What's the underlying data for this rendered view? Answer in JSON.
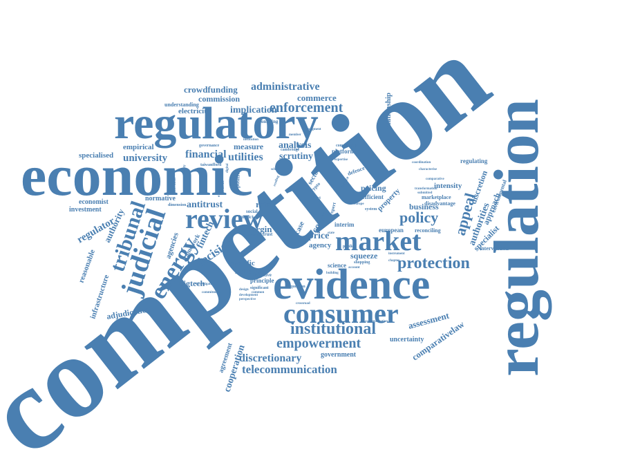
{
  "color": "#4a7fb1",
  "words": {
    "competition": "competition",
    "regulation": "regulation",
    "economic": "economic",
    "regulatory": "regulatory",
    "evidence": "evidence",
    "consumer": "consumer",
    "market": "market",
    "review": "review",
    "judicial": "judicial",
    "energy": "energy",
    "tribunal": "tribunal",
    "protection": "protection",
    "institutional": "institutional",
    "empowerment": "empowerment",
    "telecommunication": "telecommunication",
    "discretionary": "discretionary",
    "enforcement": "enforcement",
    "administrative": "administrative",
    "crowdfunding": "crowdfunding",
    "commission": "commission",
    "implication": "implication",
    "commerce": "commerce",
    "electricity": "electricity",
    "understanding": "understanding",
    "university": "university",
    "specialised": "specialised",
    "empirical": "empirical",
    "financial": "financial",
    "utilities": "utilities",
    "scrutiny": "scrutiny",
    "analysis": "analysis",
    "measure": "measure",
    "economist": "economist",
    "investment": "investment",
    "regulator": "regulator",
    "authority": "authority",
    "reasonable": "reasonable",
    "infrastructure": "infrastructure",
    "adjudication": "adjudication",
    "agencies": "agencies",
    "antitrust": "antitrust",
    "retail": "retail",
    "decision": "decision",
    "fintech": "fintech",
    "bigtech": "bigtech",
    "specific": "specific",
    "industry": "industry",
    "principle": "principle",
    "normative": "normative",
    "framework": "framework",
    "policy": "policy",
    "appeal": "appeal",
    "authorities": "authorities",
    "specialist": "specialist",
    "approach": "approach",
    "discretion": "discretion",
    "intensity": "intensity",
    "business": "business",
    "pricing": "pricing",
    "efficient": "efficient",
    "price": "price",
    "agency": "agency",
    "court": "court",
    "case": "case",
    "interim": "interim",
    "margin": "margin",
    "squeeze": "squeeze",
    "science": "science",
    "assessment": "assessment",
    "comparativelaw": "comparativelaw",
    "uncertainty": "uncertainty",
    "government": "government",
    "cooperation": "cooperation",
    "agreement": "agreement",
    "relationship": "relationship",
    "regulating": "regulating",
    "environmental": "environmental",
    "intervention": "intervention",
    "european": "european",
    "reconciling": "reconciling",
    "marketplace": "marketplace",
    "disadvantage": "disadvantage",
    "promoting": "promoting",
    "governance": "governance",
    "cambridge": "cambridge",
    "platform": "platform",
    "competitive": "competitive",
    "property": "property",
    "sector": "sector",
    "defence": "defence",
    "positive": "positive",
    "dimension": "dimension",
    "social": "social",
    "trust": "trust",
    "impact": "impact",
    "objective": "objective",
    "significant": "significant",
    "question": "question",
    "shopping": "shopping",
    "crossroad": "crossroad",
    "transformation": "transformation",
    "comparative": "comparative",
    "characterise": "characterise",
    "instrument": "instrument",
    "commitment": "commitment",
    "investigation": "investigation",
    "development": "development",
    "communication": "communication",
    "article": "article",
    "expert": "expert",
    "effect": "effect",
    "public": "public",
    "system": "system",
    "account": "account",
    "building": "building",
    "innovation": "innovation",
    "experience": "experience",
    "credibility": "credibility",
    "submitted": "submitted",
    "coordination": "coordination",
    "regulatory2": "regulatory",
    "technology": "technology",
    "evolution": "evolution",
    "perspective": "perspective",
    "integration": "integration",
    "dominance": "dominance",
    "crypto": "crypto",
    "europe": "europe",
    "school": "school",
    "state": "state",
    "design": "design",
    "issue": "issue",
    "digital": "digital",
    "domestic": "domestic",
    "evaluating": "evaluating",
    "modified": "modified",
    "reading": "reading",
    "expertise": "expertise",
    "national": "national",
    "market2": "market",
    "service": "service",
    "inquiry": "inquiry",
    "standard": "standard",
    "review2": "review",
    "taiwanfford": "taiwanfford",
    "member": "member",
    "budget": "budget",
    "theory": "theory",
    "chapter": "chapter",
    "access": "access",
    "sustainable": "sustainable",
    "procedure": "procedure",
    "context": "context",
    "context2": "institution",
    "analysis2": "empirical",
    "judgment": "judgment",
    "common": "common"
  }
}
